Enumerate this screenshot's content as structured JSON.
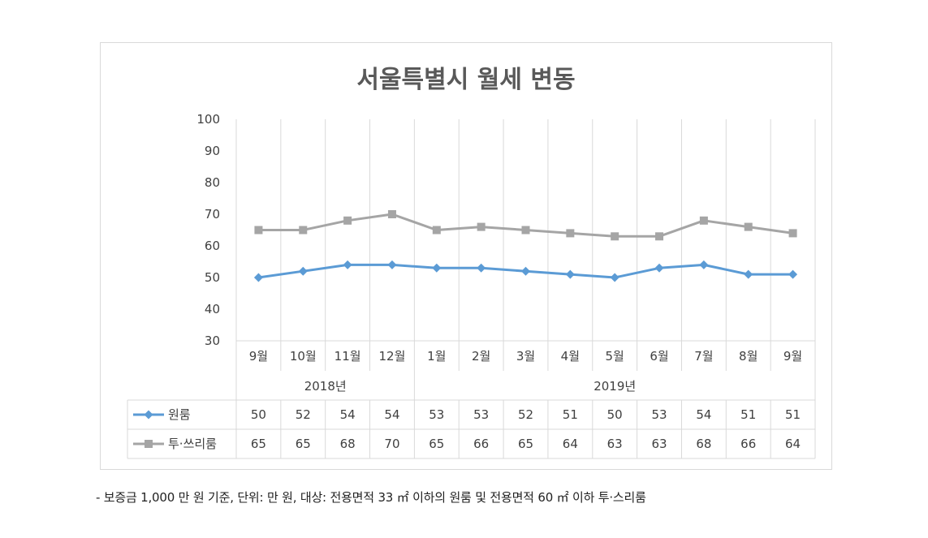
{
  "chart_data": {
    "type": "line",
    "title": "서울특별시 월세 변동",
    "categories": [
      "9월",
      "10월",
      "11월",
      "12월",
      "1월",
      "2월",
      "3월",
      "4월",
      "5월",
      "6월",
      "7월",
      "8월",
      "9월"
    ],
    "year_groups": [
      {
        "label": "2018년",
        "span": 4
      },
      {
        "label": "2019년",
        "span": 9
      }
    ],
    "y_ticks": [
      30,
      40,
      50,
      60,
      70,
      80,
      90,
      100
    ],
    "ylim": [
      30,
      100
    ],
    "grid": "vertical",
    "legend": "data-table",
    "series": [
      {
        "name": "원룸",
        "color": "#5b9bd5",
        "marker": "diamond",
        "values": [
          50,
          52,
          54,
          54,
          53,
          53,
          52,
          51,
          50,
          53,
          54,
          51,
          51
        ]
      },
      {
        "name": "투·쓰리룸",
        "color": "#a5a5a5",
        "marker": "square",
        "values": [
          65,
          65,
          68,
          70,
          65,
          66,
          65,
          64,
          63,
          63,
          68,
          66,
          64
        ]
      }
    ]
  },
  "footnote": "- 보증금 1,000 만 원 기준, 단위: 만 원, 대상: 전용면적 33 ㎡ 이하의 원룸 및 전용면적 60 ㎡ 이하 투·스리룸"
}
